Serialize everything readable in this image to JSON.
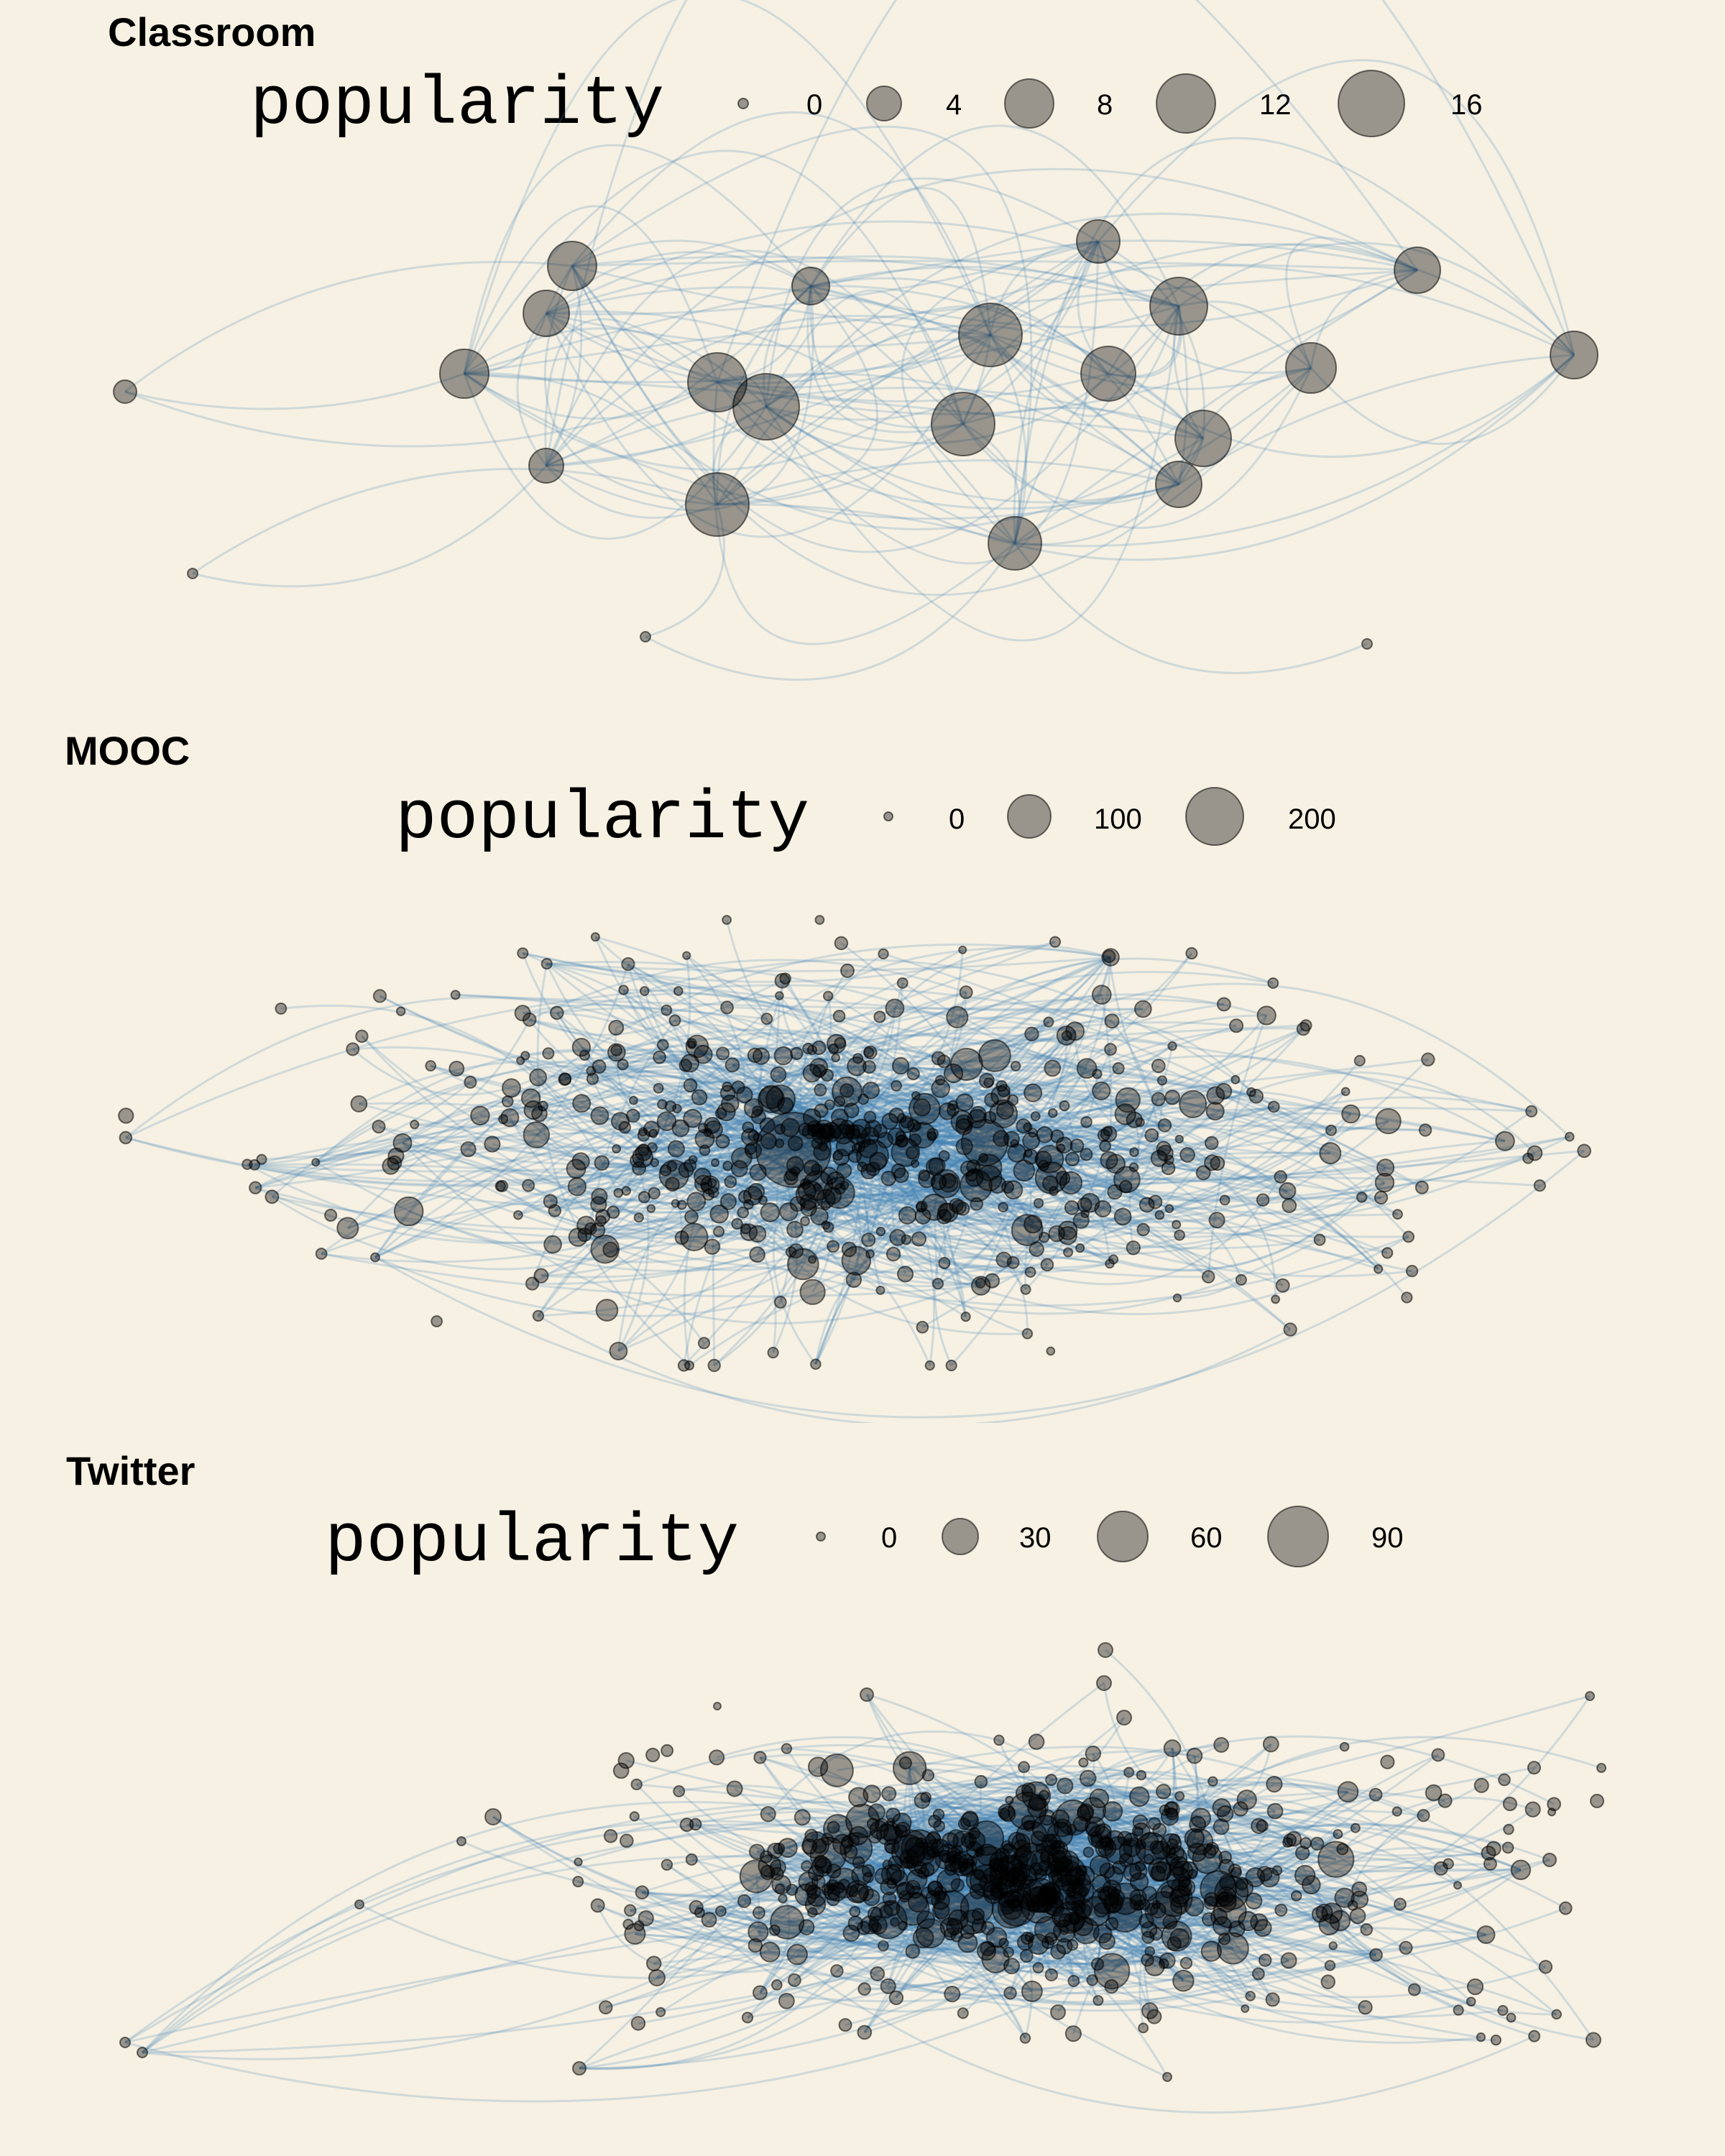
{
  "panels": [
    {
      "id": "classroom",
      "title": "Classroom",
      "legend": {
        "title": "popularity",
        "items": [
          {
            "label": "0",
            "value": 0
          },
          {
            "label": "4",
            "value": 4
          },
          {
            "label": "8",
            "value": 8
          },
          {
            "label": "12",
            "value": 12
          },
          {
            "label": "16",
            "value": 16
          }
        ]
      }
    },
    {
      "id": "mooc",
      "title": "MOOC",
      "legend": {
        "title": "popularity",
        "items": [
          {
            "label": "0",
            "value": 0
          },
          {
            "label": "100",
            "value": 100
          },
          {
            "label": "200",
            "value": 200
          }
        ]
      }
    },
    {
      "id": "twitter",
      "title": "Twitter",
      "legend": {
        "title": "popularity",
        "items": [
          {
            "label": "0",
            "value": 0
          },
          {
            "label": "30",
            "value": 30
          },
          {
            "label": "60",
            "value": 60
          },
          {
            "label": "90",
            "value": 90
          }
        ]
      }
    }
  ],
  "colors": {
    "background": "#f7f1e3",
    "edge": "#4682b4",
    "node": "#000000"
  }
}
